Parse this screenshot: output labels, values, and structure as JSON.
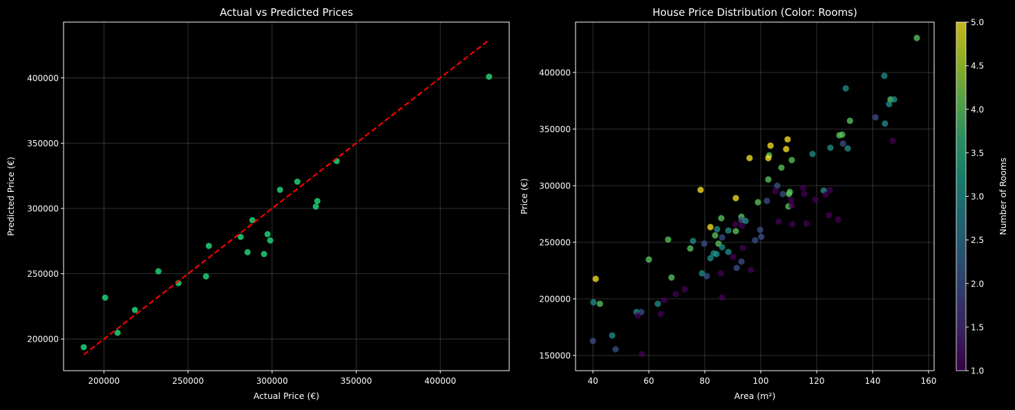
{
  "chart_data": [
    {
      "type": "scatter",
      "title": "Actual vs Predicted Prices",
      "xlabel": "Actual Price (€)",
      "ylabel": "Predicted Price (€)",
      "xlim": [
        176000,
        441000
      ],
      "ylim": [
        175800,
        442700
      ],
      "xticks": [
        200000,
        250000,
        300000,
        350000,
        400000
      ],
      "yticks": [
        200000,
        250000,
        300000,
        350000,
        400000
      ],
      "grid": true,
      "point_color": "#1fc46f",
      "reference_line": {
        "style": "dashed",
        "color": "#ff0000",
        "x": [
          188000,
          429000
        ],
        "y": [
          188000,
          429000
        ]
      },
      "points": [
        [
          188000,
          193800
        ],
        [
          200700,
          231700
        ],
        [
          208100,
          204800
        ],
        [
          218400,
          222300
        ],
        [
          232400,
          251900
        ],
        [
          244300,
          242800
        ],
        [
          260700,
          248000
        ],
        [
          262400,
          271300
        ],
        [
          281300,
          278200
        ],
        [
          285400,
          266500
        ],
        [
          288300,
          291000
        ],
        [
          295200,
          265100
        ],
        [
          297300,
          280300
        ],
        [
          298900,
          275500
        ],
        [
          304700,
          314300
        ],
        [
          315000,
          320500
        ],
        [
          326000,
          301400
        ],
        [
          326900,
          305700
        ],
        [
          338400,
          336300
        ],
        [
          429000,
          400900
        ]
      ]
    },
    {
      "type": "scatter",
      "title": "House Price Distribution (Color: Rooms)",
      "xlabel": "Area (m²)",
      "ylabel": "Price (€)",
      "xlim": [
        33.8,
        162.0
      ],
      "ylim": [
        136600,
        444500
      ],
      "xticks": [
        40,
        60,
        80,
        100,
        120,
        140,
        160
      ],
      "yticks": [
        150000,
        200000,
        250000,
        300000,
        350000,
        400000
      ],
      "grid": true,
      "colormap": "viridis",
      "colorbar": {
        "label": "Number of Rooms",
        "range": [
          1.0,
          5.0
        ],
        "ticks": [
          "1.0",
          "1.5",
          "2.0",
          "2.5",
          "3.0",
          "3.5",
          "4.0",
          "4.5",
          "5.0"
        ]
      },
      "room_colors": {
        "1": "#440154",
        "2": "#3b528b",
        "3": "#21918c",
        "4": "#5ec962",
        "5": "#fde725"
      },
      "points_area_price_rooms": [
        [
          155.8,
          430500,
          4
        ],
        [
          144.2,
          397000,
          3
        ],
        [
          130.4,
          386000,
          3
        ],
        [
          146.4,
          376200,
          4
        ],
        [
          147.7,
          376200,
          3
        ],
        [
          145.9,
          372000,
          3
        ],
        [
          141.0,
          360400,
          2
        ],
        [
          131.9,
          357300,
          4
        ],
        [
          144.4,
          354900,
          3
        ],
        [
          128.1,
          344500,
          4
        ],
        [
          129.1,
          345100,
          4
        ],
        [
          147.2,
          339600,
          1
        ],
        [
          129.4,
          337200,
          2
        ],
        [
          124.9,
          333500,
          3
        ],
        [
          131.1,
          332900,
          3
        ],
        [
          109.6,
          340900,
          5
        ],
        [
          103.5,
          335400,
          5
        ],
        [
          109.1,
          332300,
          5
        ],
        [
          96.0,
          324400,
          5
        ],
        [
          103.0,
          326800,
          4
        ],
        [
          102.7,
          324400,
          5
        ],
        [
          111.1,
          322600,
          4
        ],
        [
          118.5,
          328000,
          3
        ],
        [
          107.4,
          315900,
          4
        ],
        [
          102.7,
          305500,
          4
        ],
        [
          105.9,
          300000,
          2
        ],
        [
          105.2,
          295100,
          1
        ],
        [
          107.9,
          292700,
          2
        ],
        [
          110.4,
          294500,
          4
        ],
        [
          110.1,
          292700,
          4
        ],
        [
          115.1,
          298200,
          1
        ],
        [
          115.6,
          292700,
          1
        ],
        [
          124.7,
          296300,
          1
        ],
        [
          122.5,
          295700,
          3
        ],
        [
          123.2,
          292000,
          1
        ],
        [
          119.5,
          287800,
          1
        ],
        [
          110.9,
          287200,
          1
        ],
        [
          99.0,
          285400,
          4
        ],
        [
          102.2,
          286600,
          2
        ],
        [
          109.9,
          281700,
          4
        ],
        [
          111.1,
          282300,
          1
        ],
        [
          106.4,
          268300,
          1
        ],
        [
          111.4,
          265900,
          1
        ],
        [
          116.3,
          266500,
          1
        ],
        [
          124.4,
          273800,
          1
        ],
        [
          127.7,
          270100,
          1
        ],
        [
          99.8,
          261000,
          2
        ],
        [
          98.0,
          251800,
          2
        ],
        [
          100.2,
          254900,
          2
        ],
        [
          78.5,
          296300,
          5
        ],
        [
          91.1,
          289000,
          5
        ],
        [
          85.9,
          271300,
          4
        ],
        [
          93.1,
          272600,
          4
        ],
        [
          93.1,
          269500,
          2
        ],
        [
          94.6,
          268900,
          3
        ],
        [
          90.9,
          265900,
          1
        ],
        [
          93.3,
          264600,
          1
        ],
        [
          82.0,
          263400,
          5
        ],
        [
          84.4,
          261600,
          3
        ],
        [
          88.4,
          260400,
          3
        ],
        [
          91.1,
          259800,
          4
        ],
        [
          83.7,
          256100,
          4
        ],
        [
          86.2,
          254300,
          2
        ],
        [
          66.9,
          252400,
          4
        ],
        [
          75.8,
          251200,
          3
        ],
        [
          79.8,
          248800,
          2
        ],
        [
          84.9,
          248800,
          4
        ],
        [
          74.8,
          244500,
          4
        ],
        [
          86.2,
          245700,
          3
        ],
        [
          93.6,
          245100,
          1
        ],
        [
          82.0,
          236000,
          3
        ],
        [
          83.2,
          240200,
          3
        ],
        [
          84.2,
          239600,
          3
        ],
        [
          88.4,
          241500,
          3
        ],
        [
          90.1,
          237200,
          1
        ],
        [
          93.1,
          232900,
          2
        ],
        [
          91.4,
          227400,
          2
        ],
        [
          96.5,
          225600,
          1
        ],
        [
          79.0,
          222600,
          3
        ],
        [
          80.7,
          220100,
          2
        ],
        [
          85.7,
          222600,
          1
        ],
        [
          86.2,
          201200,
          1
        ],
        [
          72.8,
          208500,
          1
        ],
        [
          69.6,
          204300,
          1
        ],
        [
          68.1,
          218900,
          4
        ],
        [
          60.0,
          234800,
          4
        ],
        [
          41.0,
          217700,
          5
        ],
        [
          65.4,
          198800,
          1
        ],
        [
          63.2,
          195700,
          3
        ],
        [
          40.2,
          197000,
          3
        ],
        [
          42.5,
          195700,
          4
        ],
        [
          55.6,
          188400,
          3
        ],
        [
          57.3,
          188400,
          2
        ],
        [
          56.0,
          185400,
          1
        ],
        [
          64.2,
          186600,
          1
        ],
        [
          46.9,
          167700,
          3
        ],
        [
          40.0,
          162800,
          2
        ],
        [
          48.1,
          155500,
          2
        ],
        [
          57.5,
          151200,
          1
        ]
      ]
    }
  ]
}
